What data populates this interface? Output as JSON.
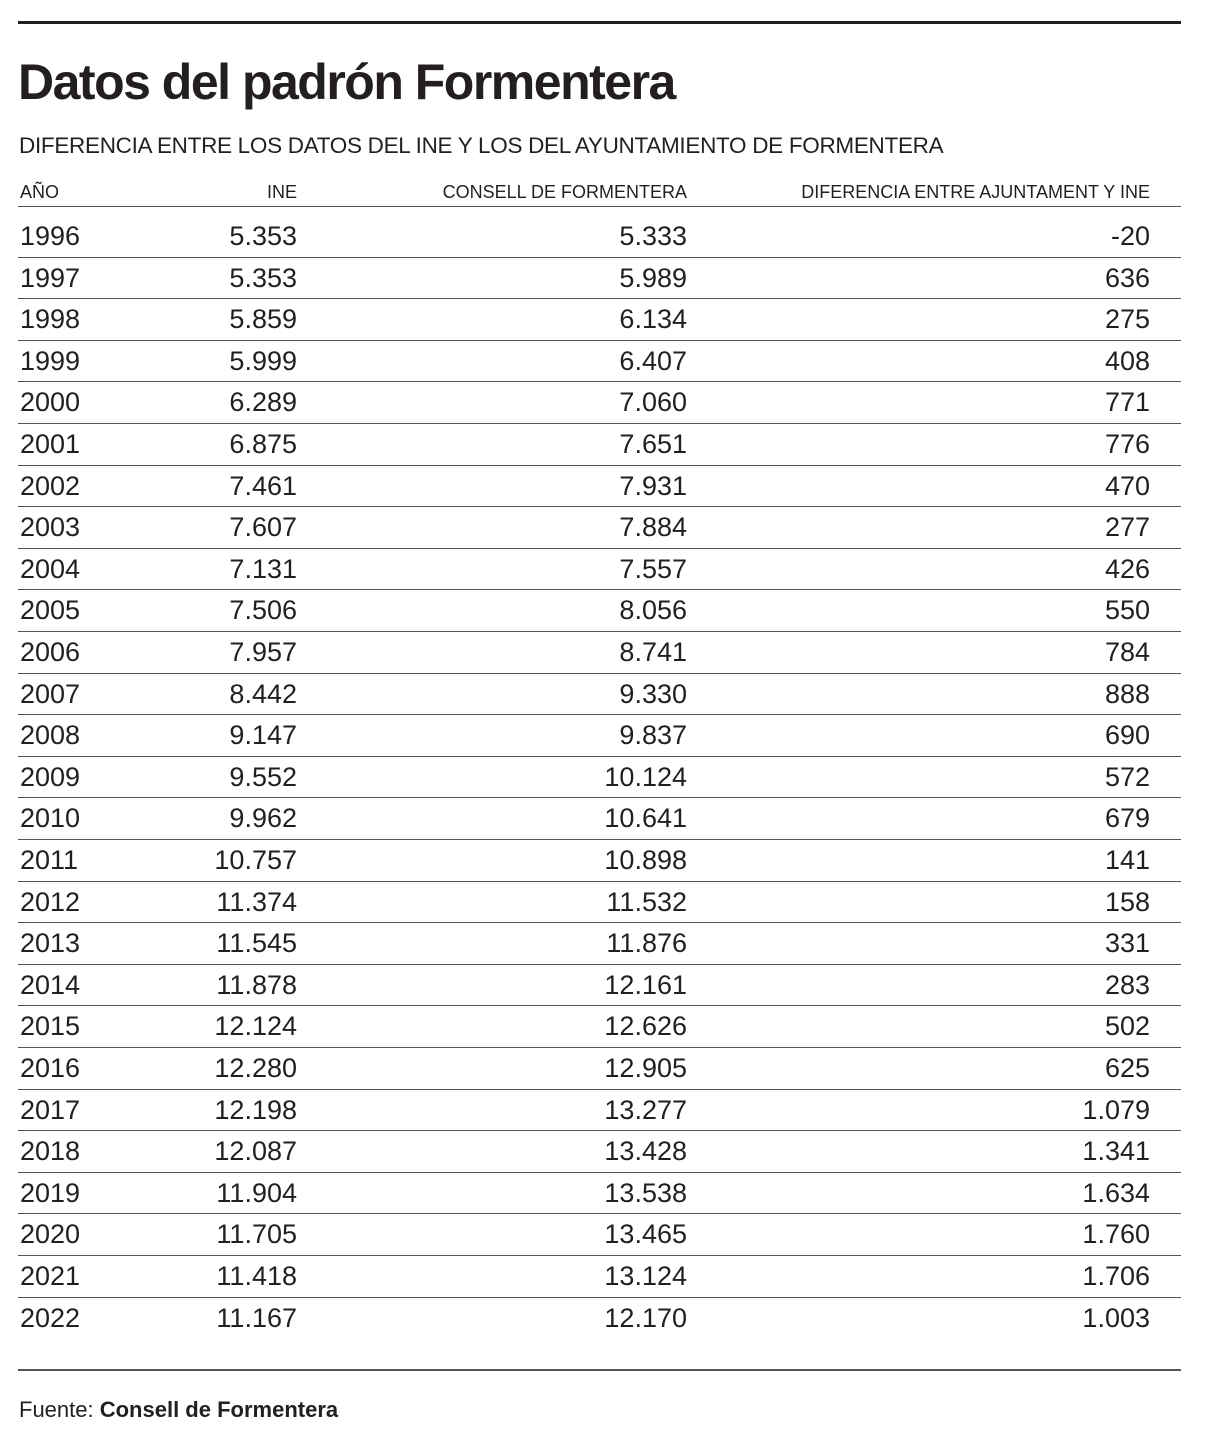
{
  "title": "Datos del padrón Formentera",
  "subtitle": "DIFERENCIA ENTRE LOS DATOS DEL INE Y LOS DEL AYUNTAMIENTO DE FORMENTERA",
  "source_label": "Fuente:",
  "source_name": "Consell de Formentera",
  "colors": {
    "text": "#231f20",
    "rule": "#555555",
    "background": "#ffffff"
  },
  "chart_data": {
    "type": "table",
    "title": "Datos del padrón Formentera",
    "subtitle": "DIFERENCIA ENTRE LOS DATOS DEL INE Y LOS DEL AYUNTAMIENTO DE FORMENTERA",
    "columns": [
      "AÑO",
      "INE",
      "CONSELL DE FORMENTERA",
      "DIFERENCIA ENTRE AJUNTAMENT Y INE"
    ],
    "rows": [
      [
        "1996",
        "5.353",
        "5.333",
        "-20"
      ],
      [
        "1997",
        "5.353",
        "5.989",
        "636"
      ],
      [
        "1998",
        "5.859",
        "6.134",
        "275"
      ],
      [
        "1999",
        "5.999",
        "6.407",
        "408"
      ],
      [
        "2000",
        "6.289",
        "7.060",
        "771"
      ],
      [
        "2001",
        "6.875",
        "7.651",
        "776"
      ],
      [
        "2002",
        "7.461",
        "7.931",
        "470"
      ],
      [
        "2003",
        "7.607",
        "7.884",
        "277"
      ],
      [
        "2004",
        "7.131",
        "7.557",
        "426"
      ],
      [
        "2005",
        "7.506",
        "8.056",
        "550"
      ],
      [
        "2006",
        "7.957",
        "8.741",
        "784"
      ],
      [
        "2007",
        "8.442",
        "9.330",
        "888"
      ],
      [
        "2008",
        "9.147",
        "9.837",
        "690"
      ],
      [
        "2009",
        "9.552",
        "10.124",
        "572"
      ],
      [
        "2010",
        "9.962",
        "10.641",
        "679"
      ],
      [
        "2011",
        "10.757",
        "10.898",
        "141"
      ],
      [
        "2012",
        "11.374",
        "11.532",
        "158"
      ],
      [
        "2013",
        "11.545",
        "11.876",
        "331"
      ],
      [
        "2014",
        "11.878",
        "12.161",
        "283"
      ],
      [
        "2015",
        "12.124",
        "12.626",
        "502"
      ],
      [
        "2016",
        "12.280",
        "12.905",
        "625"
      ],
      [
        "2017",
        "12.198",
        "13.277",
        "1.079"
      ],
      [
        "2018",
        "12.087",
        "13.428",
        "1.341"
      ],
      [
        "2019",
        "11.904",
        "13.538",
        "1.634"
      ],
      [
        "2020",
        "11.705",
        "13.465",
        "1.760"
      ],
      [
        "2021",
        "11.418",
        "13.124",
        "1.706"
      ],
      [
        "2022",
        "11.167",
        "12.170",
        "1.003"
      ]
    ]
  }
}
